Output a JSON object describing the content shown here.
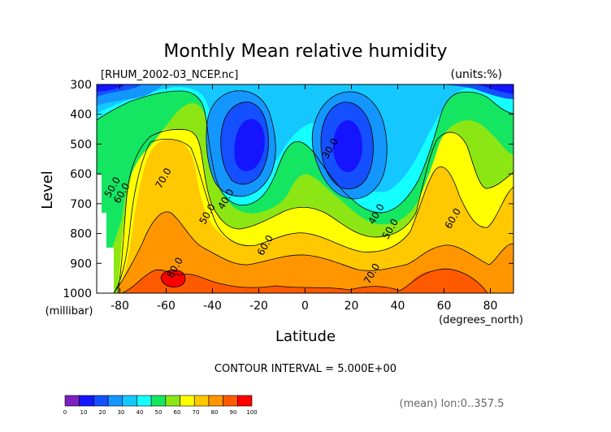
{
  "chart_data": {
    "type": "heatmap",
    "title": "Monthly Mean relative humidity",
    "file_label": "[RHUM_2002-03_NCEP.nc]",
    "units_label": "(units:%)",
    "xlabel": "Latitude",
    "x_units": "(degrees_north)",
    "ylabel": "Level",
    "y_units": "(millibar)",
    "xlim": [
      -90,
      90
    ],
    "ylim": [
      1000,
      300
    ],
    "x_ticks": [
      -80,
      -60,
      -40,
      -20,
      0,
      20,
      40,
      60,
      80
    ],
    "y_ticks": [
      300,
      400,
      500,
      600,
      700,
      800,
      900,
      1000
    ],
    "contour_interval_text": "CONTOUR INTERVAL = 5.000E+00",
    "averaging_note": "(mean) lon:0..357.5",
    "contour_labels": [
      {
        "text": "50.0",
        "x": -82,
        "y": 650
      },
      {
        "text": "60.0",
        "x": -78,
        "y": 670
      },
      {
        "text": "70.0",
        "x": -60,
        "y": 620
      },
      {
        "text": "40.0",
        "x": -33,
        "y": 690
      },
      {
        "text": "50.0",
        "x": -41,
        "y": 740
      },
      {
        "text": "80.0",
        "x": -55,
        "y": 920
      },
      {
        "text": "30.0",
        "x": 12,
        "y": 520
      },
      {
        "text": "60.0",
        "x": -16,
        "y": 845
      },
      {
        "text": "40.0",
        "x": 32,
        "y": 740
      },
      {
        "text": "50.0",
        "x": 38,
        "y": 790
      },
      {
        "text": "70.0",
        "x": 30,
        "y": 940
      },
      {
        "text": "60.0",
        "x": 65,
        "y": 755
      }
    ],
    "colorbar": {
      "levels": [
        0,
        10,
        20,
        30,
        40,
        50,
        60,
        70,
        80,
        90,
        100
      ],
      "colors": [
        "#7f1fbf",
        "#1414ff",
        "#1450ff",
        "#1496ff",
        "#14c8ff",
        "#14ffff",
        "#14e662",
        "#8ce614",
        "#ffff00",
        "#ffc800",
        "#ff9600",
        "#ff5a00",
        "#ff0000"
      ]
    }
  }
}
